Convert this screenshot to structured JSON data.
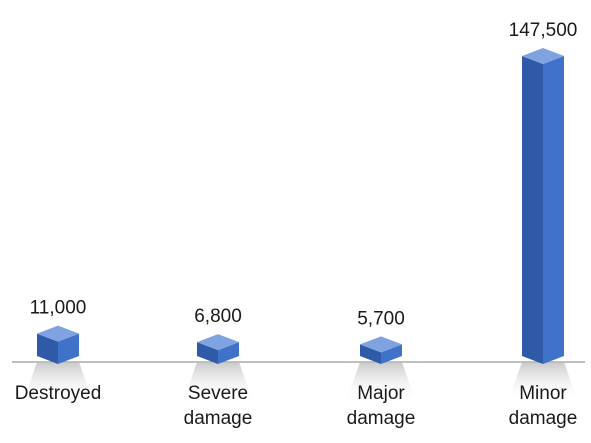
{
  "chart_data": {
    "type": "bar",
    "categories": [
      "Destroyed",
      "Severe damage",
      "Major damage",
      "Minor damage"
    ],
    "values": [
      11000,
      6800,
      5700,
      147500
    ],
    "value_labels": [
      "11,000",
      "6,800",
      "5,700",
      "147,500"
    ],
    "color": "#2e5aa8"
  }
}
